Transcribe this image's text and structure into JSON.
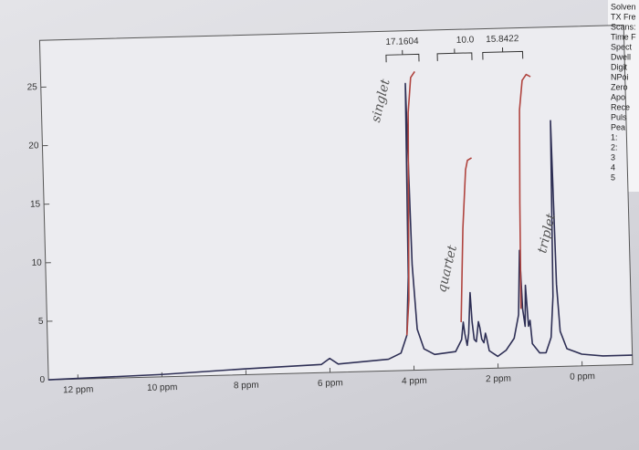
{
  "chart_data": {
    "type": "line",
    "xlim": [
      12.7,
      -1.2
    ],
    "ylim": [
      0,
      29
    ],
    "xticks": [
      {
        "value": 12,
        "label": "12 ppm"
      },
      {
        "value": 10,
        "label": "10 ppm"
      },
      {
        "value": 8,
        "label": "8 ppm"
      },
      {
        "value": 6,
        "label": "6 ppm"
      },
      {
        "value": 4,
        "label": "4 ppm"
      },
      {
        "value": 2,
        "label": "2 ppm"
      },
      {
        "value": 0,
        "label": "0 ppm"
      }
    ],
    "yticks": [
      0,
      5,
      10,
      15,
      20,
      25
    ],
    "series": [
      {
        "color": "#2e2f55",
        "x": [
          12.7,
          10,
          8,
          6.2,
          6.0,
          5.8,
          4.6,
          4.3,
          4.15,
          4.08,
          4.03,
          3.98,
          3.9,
          3.75,
          3.5,
          3.0,
          2.85,
          2.8,
          2.77,
          2.72,
          2.68,
          2.62,
          2.59,
          2.55,
          2.5,
          2.44,
          2.41,
          2.37,
          2.32,
          2.28,
          2.25,
          2.2,
          2.0,
          1.8,
          1.6,
          1.48,
          1.42,
          1.38,
          1.33,
          1.3,
          1.25,
          1.21,
          1.17,
          1.0,
          0.85,
          0.72,
          0.65,
          0.6,
          0.56,
          0.5,
          0.35,
          0,
          -0.5,
          -1.2
        ],
        "values": [
          0,
          0.2,
          0.5,
          0.7,
          1.2,
          0.7,
          1.0,
          1.5,
          3,
          8,
          24.5,
          9,
          3.5,
          1.8,
          1.3,
          1.5,
          2.5,
          4,
          3,
          2,
          3,
          6.5,
          4,
          2.5,
          2.3,
          4,
          3.5,
          2.5,
          2.2,
          3,
          2.5,
          1.5,
          1,
          1.5,
          2.5,
          4.5,
          10,
          5,
          3.5,
          7,
          3.5,
          4,
          2,
          1.2,
          1.2,
          2.5,
          6,
          21,
          7,
          3,
          1.5,
          1.0,
          0.8,
          0.8
        ]
      },
      {
        "color": "#b0443f",
        "x": [
          4.15,
          4.08,
          4.03,
          3.98,
          3.9,
          3.8
        ],
        "values": [
          3,
          6,
          14,
          22,
          25,
          25.5
        ]
      },
      {
        "color": "#b0443f",
        "x": [
          2.85,
          2.75,
          2.65,
          2.6,
          2.5
        ],
        "values": [
          4,
          12,
          17,
          17.8,
          18
        ]
      },
      {
        "color": "#b0443f",
        "x": [
          1.42,
          1.38,
          1.33,
          1.25,
          1.15,
          1.05
        ],
        "values": [
          5,
          14,
          22,
          24.5,
          25,
          24.8
        ]
      }
    ],
    "integrals": {
      "values": [
        17.1604,
        10,
        15.8422
      ],
      "value_labels": [
        "17.1604",
        "10.0",
        "15.8422"
      ],
      "ranges": [
        [
          4.47,
          3.69
        ],
        [
          3.25,
          2.43
        ],
        [
          2.17,
          1.22
        ]
      ]
    },
    "annotations": [
      "singlet",
      "quartet",
      "triplet"
    ]
  },
  "side_panel": [
    "Solven",
    "TX Fre",
    "Scans:",
    "Time F",
    "Spect",
    "Dwell",
    "Digit",
    "NPoi",
    "Zero",
    "Apo",
    "Rece",
    "Puls",
    "Pea",
    "1:",
    "2:",
    "3",
    "4",
    "5"
  ]
}
